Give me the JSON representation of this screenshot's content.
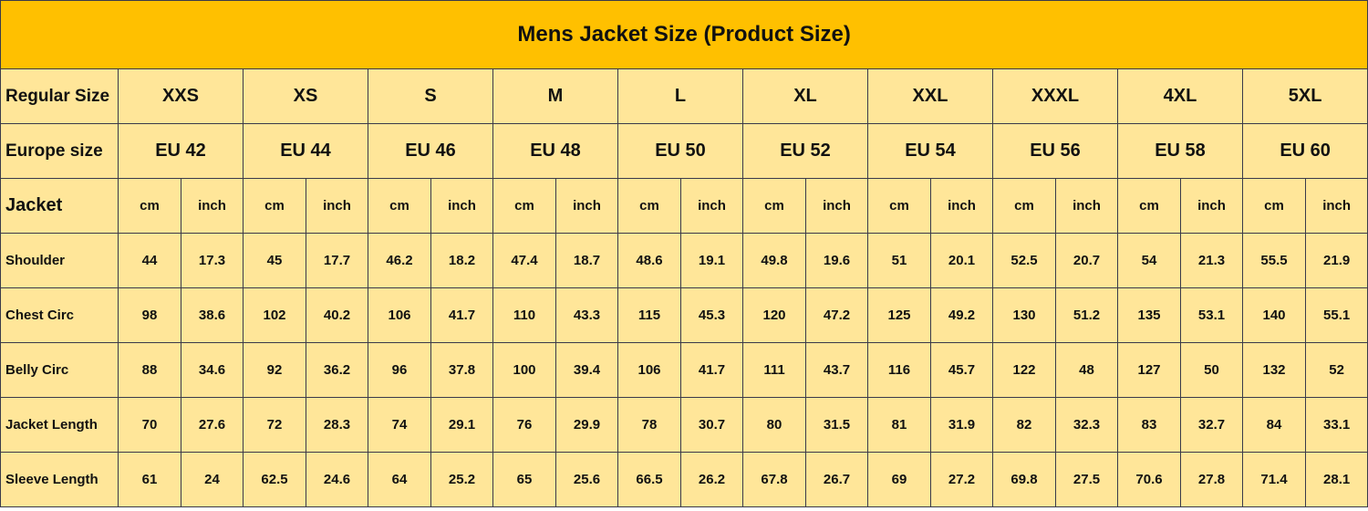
{
  "title": "Mens Jacket Size (Product Size)",
  "colors": {
    "title_bg": "#FFC000",
    "cell_bg": "#FFE699"
  },
  "regular_size": {
    "label": "Regular Size",
    "values": [
      "XXS",
      "XS",
      "S",
      "M",
      "L",
      "XL",
      "XXL",
      "XXXL",
      "4XL",
      "5XL"
    ]
  },
  "europe_size": {
    "label": "Europe size",
    "values": [
      "EU 42",
      "EU 44",
      "EU 46",
      "EU 48",
      "EU 50",
      "EU 52",
      "EU 54",
      "EU 56",
      "EU 58",
      "EU 60"
    ]
  },
  "units": {
    "label": "Jacket",
    "cm": "cm",
    "inch": "inch"
  },
  "measurements": [
    {
      "label": "Shoulder",
      "values": [
        [
          "44",
          "17.3"
        ],
        [
          "45",
          "17.7"
        ],
        [
          "46.2",
          "18.2"
        ],
        [
          "47.4",
          "18.7"
        ],
        [
          "48.6",
          "19.1"
        ],
        [
          "49.8",
          "19.6"
        ],
        [
          "51",
          "20.1"
        ],
        [
          "52.5",
          "20.7"
        ],
        [
          "54",
          "21.3"
        ],
        [
          "55.5",
          "21.9"
        ]
      ]
    },
    {
      "label": "Chest Circ",
      "values": [
        [
          "98",
          "38.6"
        ],
        [
          "102",
          "40.2"
        ],
        [
          "106",
          "41.7"
        ],
        [
          "110",
          "43.3"
        ],
        [
          "115",
          "45.3"
        ],
        [
          "120",
          "47.2"
        ],
        [
          "125",
          "49.2"
        ],
        [
          "130",
          "51.2"
        ],
        [
          "135",
          "53.1"
        ],
        [
          "140",
          "55.1"
        ]
      ]
    },
    {
      "label": "Belly Circ",
      "values": [
        [
          "88",
          "34.6"
        ],
        [
          "92",
          "36.2"
        ],
        [
          "96",
          "37.8"
        ],
        [
          "100",
          "39.4"
        ],
        [
          "106",
          "41.7"
        ],
        [
          "111",
          "43.7"
        ],
        [
          "116",
          "45.7"
        ],
        [
          "122",
          "48"
        ],
        [
          "127",
          "50"
        ],
        [
          "132",
          "52"
        ]
      ]
    },
    {
      "label": "Jacket Length",
      "values": [
        [
          "70",
          "27.6"
        ],
        [
          "72",
          "28.3"
        ],
        [
          "74",
          "29.1"
        ],
        [
          "76",
          "29.9"
        ],
        [
          "78",
          "30.7"
        ],
        [
          "80",
          "31.5"
        ],
        [
          "81",
          "31.9"
        ],
        [
          "82",
          "32.3"
        ],
        [
          "83",
          "32.7"
        ],
        [
          "84",
          "33.1"
        ]
      ]
    },
    {
      "label": "Sleeve Length",
      "values": [
        [
          "61",
          "24"
        ],
        [
          "62.5",
          "24.6"
        ],
        [
          "64",
          "25.2"
        ],
        [
          "65",
          "25.6"
        ],
        [
          "66.5",
          "26.2"
        ],
        [
          "67.8",
          "26.7"
        ],
        [
          "69",
          "27.2"
        ],
        [
          "69.8",
          "27.5"
        ],
        [
          "70.6",
          "27.8"
        ],
        [
          "71.4",
          "28.1"
        ]
      ]
    }
  ]
}
